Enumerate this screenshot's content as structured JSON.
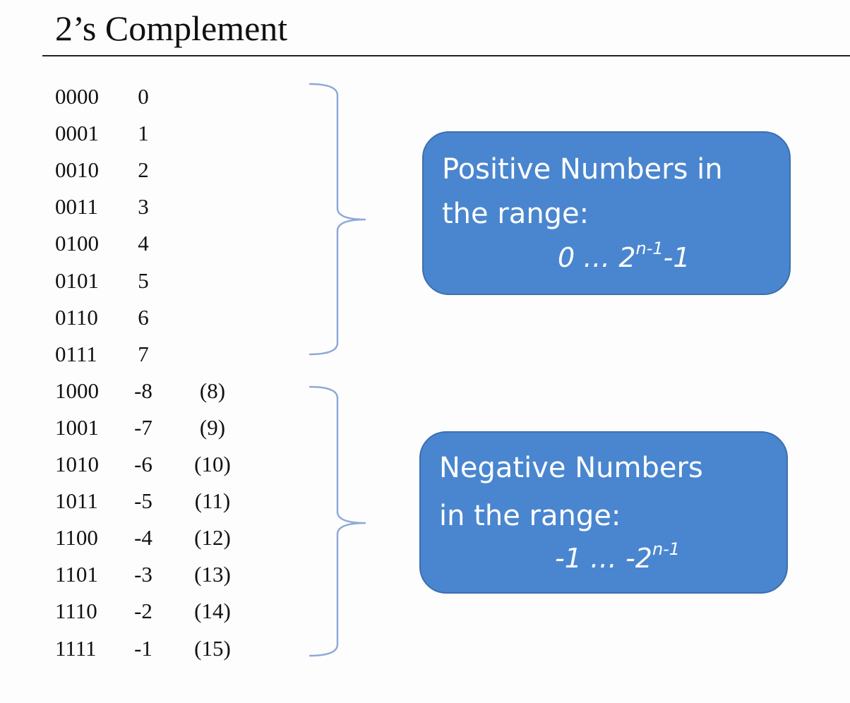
{
  "title": "2’s Complement",
  "rows": [
    {
      "binary": "0000",
      "value": "0",
      "unsigned": ""
    },
    {
      "binary": "0001",
      "value": "1",
      "unsigned": ""
    },
    {
      "binary": "0010",
      "value": "2",
      "unsigned": ""
    },
    {
      "binary": "0011",
      "value": "3",
      "unsigned": ""
    },
    {
      "binary": "0100",
      "value": "4",
      "unsigned": ""
    },
    {
      "binary": "0101",
      "value": "5",
      "unsigned": ""
    },
    {
      "binary": "0110",
      "value": "6",
      "unsigned": ""
    },
    {
      "binary": "0111",
      "value": "7",
      "unsigned": ""
    },
    {
      "binary": "1000",
      "value": "-8",
      "unsigned": "(8)"
    },
    {
      "binary": "1001",
      "value": "-7",
      "unsigned": "(9)"
    },
    {
      "binary": "1010",
      "value": "-6",
      "unsigned": "(10)"
    },
    {
      "binary": "1011",
      "value": "-5",
      "unsigned": "(11)"
    },
    {
      "binary": "1100",
      "value": "-4",
      "unsigned": "(12)"
    },
    {
      "binary": "1101",
      "value": "-3",
      "unsigned": "(13)"
    },
    {
      "binary": "1110",
      "value": "-2",
      "unsigned": "(14)"
    },
    {
      "binary": "1111",
      "value": "-1",
      "unsigned": "(15)"
    }
  ],
  "positive_callout": {
    "line1": "Positive Numbers in",
    "line2": "the range:",
    "formula_start": "0 … 2",
    "formula_sup": "n-1",
    "formula_end": "-1"
  },
  "negative_callout": {
    "line1": "Negative Numbers",
    "line2": "in the range:",
    "formula_start": "-1 … -2",
    "formula_sup": "n-1",
    "formula_end": ""
  },
  "colors": {
    "callout_fill": "#4a86cf",
    "callout_border": "#3c6fae",
    "brace": "#8fa9d8",
    "title_rule": "#222222"
  }
}
